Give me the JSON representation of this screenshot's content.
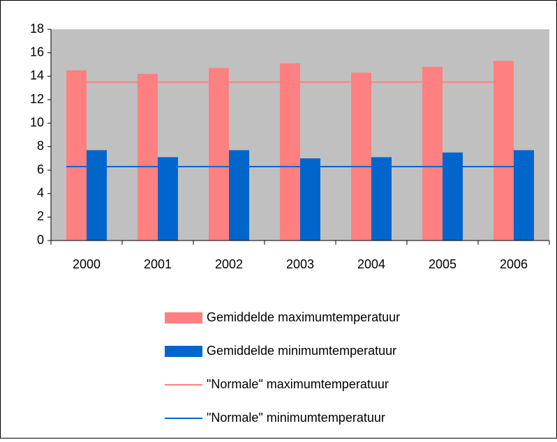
{
  "chart_data": {
    "type": "bar",
    "categories": [
      "2000",
      "2001",
      "2002",
      "2003",
      "2004",
      "2005",
      "2006"
    ],
    "series": [
      {
        "name": "Gemiddelde maximumtemperatuur",
        "type": "bar",
        "color": "#ff8080",
        "values": [
          14.5,
          14.2,
          14.7,
          15.1,
          14.3,
          14.8,
          15.3
        ]
      },
      {
        "name": "Gemiddelde minimumtemperatuur",
        "type": "bar",
        "color": "#0066cc",
        "values": [
          7.7,
          7.1,
          7.7,
          7.0,
          7.1,
          7.5,
          7.7
        ]
      },
      {
        "name": "\"Normale\" maximumtemperatuur",
        "type": "line",
        "color": "#ff8080",
        "values": [
          13.5,
          13.5,
          13.5,
          13.5,
          13.5,
          13.5,
          13.5
        ]
      },
      {
        "name": "\"Normale\" minimumtemperatuur",
        "type": "line",
        "color": "#0066cc",
        "values": [
          6.3,
          6.3,
          6.3,
          6.3,
          6.3,
          6.3,
          6.3
        ]
      }
    ],
    "ylim": [
      0,
      18
    ],
    "yticks": [
      0,
      2,
      4,
      6,
      8,
      10,
      12,
      14,
      16,
      18
    ],
    "grid": false,
    "legend": "bottom"
  }
}
